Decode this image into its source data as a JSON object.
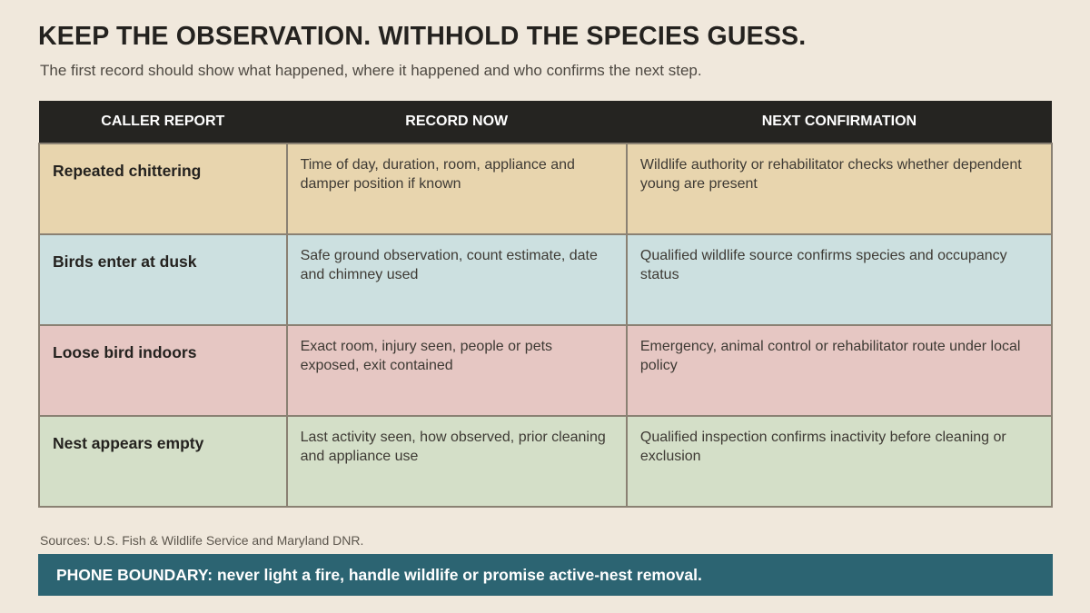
{
  "title": "KEEP THE OBSERVATION. WITHHOLD THE SPECIES GUESS.",
  "subtitle": "The first record should show what happened, where it happened and who confirms the next step.",
  "table": {
    "headers": [
      "CALLER REPORT",
      "RECORD NOW",
      "NEXT CONFIRMATION"
    ],
    "rows": [
      {
        "report": "Repeated chittering",
        "record": "Time of day, duration, room, appliance and damper position if known",
        "confirmation": "Wildlife authority or rehabilitator checks whether dependent young are present",
        "color": "#e8d5ae"
      },
      {
        "report": "Birds enter at dusk",
        "record": "Safe ground observation, count estimate, date and chimney used",
        "confirmation": "Qualified wildlife source confirms species and occupancy status",
        "color": "#cce0e0"
      },
      {
        "report": "Loose bird indoors",
        "record": "Exact room, injury seen, people or pets exposed, exit contained",
        "confirmation": "Emergency, animal control or rehabilitator route under local policy",
        "color": "#e6c7c3"
      },
      {
        "report": "Nest appears empty",
        "record": "Last activity seen, how observed, prior cleaning and appliance use",
        "confirmation": "Qualified inspection confirms inactivity before cleaning or exclusion",
        "color": "#d4dfc8"
      }
    ]
  },
  "sources": "Sources: U.S. Fish & Wildlife Service and Maryland DNR.",
  "banner": "PHONE BOUNDARY: never light a fire, handle wildlife or promise active-nest removal.",
  "colors": {
    "background": "#f0e8dc",
    "header": "#252421",
    "banner": "#2c6472",
    "cell_border": "#8a8173"
  }
}
